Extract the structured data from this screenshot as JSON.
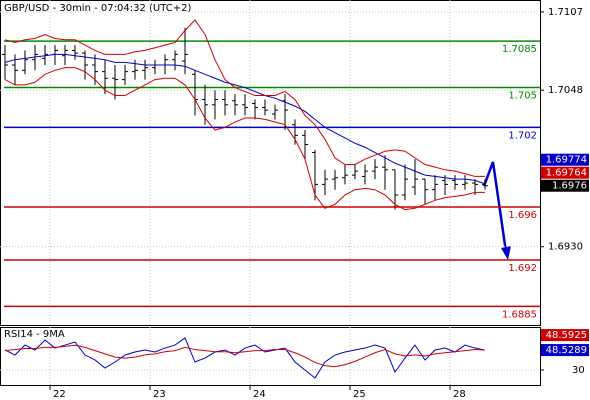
{
  "chart_data": [
    {
      "type": "ohlc",
      "title": "GBP/USD - 30min - 07:04:32 (UTC+2)",
      "color": "#000000",
      "categories": [
        null,
        null,
        null,
        null,
        null,
        "22",
        null,
        null,
        null,
        null,
        null,
        null,
        null,
        null,
        null,
        "23",
        null,
        null,
        null,
        null,
        null,
        null,
        null,
        null,
        null,
        "24",
        null,
        null,
        null,
        null,
        null,
        null,
        null,
        null,
        null,
        "25",
        null,
        null,
        null,
        null,
        null,
        null,
        null,
        null,
        null,
        "28",
        null,
        null,
        null
      ],
      "open": [
        1.7075,
        1.7067,
        1.7063,
        1.7071,
        1.7072,
        1.7075,
        1.7074,
        1.7078,
        1.7076,
        1.7067,
        1.7062,
        1.7057,
        1.7056,
        1.7062,
        1.7063,
        1.7065,
        1.7067,
        1.7071,
        1.707,
        1.706,
        1.7041,
        1.7037,
        1.7041,
        1.704,
        1.7037,
        1.7038,
        1.7035,
        1.703,
        1.704,
        1.7022,
        1.7014,
        1.7001,
        1.6977,
        1.6981,
        1.6982,
        1.6984,
        1.6983,
        1.6987,
        1.699,
        1.6988,
        1.6969,
        1.6975,
        1.6981,
        1.6973,
        1.698,
        1.698,
        1.6977,
        1.6978,
        1.6977
      ],
      "high": [
        1.7082,
        1.7075,
        1.7078,
        1.7082,
        1.7082,
        1.7082,
        1.7082,
        1.7082,
        1.7078,
        1.7075,
        1.7071,
        1.7067,
        1.7067,
        1.7071,
        1.7071,
        1.7071,
        1.7075,
        1.7078,
        1.7095,
        1.7063,
        1.7052,
        1.7048,
        1.7048,
        1.7045,
        1.7045,
        1.7041,
        1.7041,
        1.7037,
        1.7045,
        1.7026,
        1.7018,
        1.7003,
        1.6988,
        1.6988,
        1.6992,
        1.6992,
        1.6992,
        1.6996,
        1.6999,
        1.6988,
        1.6992,
        1.6996,
        1.6981,
        1.6984,
        1.6984,
        1.6984,
        1.6984,
        1.6981,
        1.6981
      ],
      "low": [
        1.7056,
        1.7052,
        1.706,
        1.7063,
        1.7067,
        1.7067,
        1.7067,
        1.7071,
        1.7056,
        1.7052,
        1.7045,
        1.7041,
        1.7052,
        1.7056,
        1.7056,
        1.706,
        1.706,
        1.7063,
        1.706,
        1.7029,
        1.7022,
        1.7026,
        1.7029,
        1.7029,
        1.7029,
        1.7026,
        1.7029,
        1.7026,
        1.7018,
        1.7007,
        1.6996,
        1.6965,
        1.6969,
        1.6973,
        1.6977,
        1.6981,
        1.6977,
        1.6981,
        1.6973,
        1.6958,
        1.6965,
        1.6969,
        1.6962,
        1.6965,
        1.6969,
        1.6973,
        1.6973,
        1.6969,
        1.6973
      ],
      "close": [
        1.7067,
        1.7063,
        1.7071,
        1.7075,
        1.7075,
        1.7078,
        1.7078,
        1.7076,
        1.7067,
        1.7062,
        1.7057,
        1.7056,
        1.7062,
        1.7063,
        1.7065,
        1.7067,
        1.7071,
        1.7075,
        1.7075,
        1.7041,
        1.7037,
        1.7041,
        1.7037,
        1.7037,
        1.7035,
        1.7035,
        1.7033,
        1.7033,
        1.7033,
        1.7014,
        1.7007,
        1.6977,
        1.6981,
        1.6982,
        1.6984,
        1.6987,
        1.6987,
        1.699,
        1.6988,
        1.6969,
        1.6981,
        1.6981,
        1.6973,
        1.6977,
        1.6977,
        1.6977,
        1.6978,
        1.6977,
        1.6976
      ],
      "lines": [
        {
          "color": "#0000c8",
          "values": [
            1.7069,
            1.7071,
            1.7072,
            1.7073,
            1.7074,
            1.7075,
            1.7075,
            1.7074,
            1.7073,
            1.7072,
            1.7071,
            1.7069,
            1.7069,
            1.7068,
            1.7067,
            1.7067,
            1.7067,
            1.7067,
            1.7066,
            1.7063,
            1.706,
            1.7057,
            1.7054,
            1.7052,
            1.705,
            1.7047,
            1.7044,
            1.7042,
            1.7039,
            1.7036,
            1.7032,
            1.7026,
            1.702,
            1.7016,
            1.7012,
            1.7008,
            1.7005,
            1.7001,
            1.6997,
            1.6993,
            1.699,
            1.6987,
            1.6984,
            1.6983,
            1.6982,
            1.6981,
            1.6981,
            1.698,
            1.69774
          ]
        },
        {
          "color": "#d00000",
          "values": [
            1.7086,
            1.7084,
            1.7086,
            1.7087,
            1.709,
            1.7087,
            1.7086,
            1.7086,
            1.7082,
            1.7078,
            1.7075,
            1.7075,
            1.7075,
            1.7077,
            1.7078,
            1.708,
            1.7082,
            1.7084,
            1.7093,
            1.7101,
            1.709,
            1.7071,
            1.7056,
            1.705,
            1.7047,
            1.7044,
            1.7044,
            1.7044,
            1.7047,
            1.7041,
            1.7029,
            1.7022,
            1.7011,
            1.6997,
            1.6992,
            1.6992,
            1.6996,
            1.6999,
            1.7002,
            1.7003,
            1.7002,
            1.6997,
            1.6992,
            1.699,
            1.6988,
            1.6987,
            1.6985,
            1.6983,
            1.6983
          ]
        },
        {
          "color": "#d00000",
          "values": [
            1.7056,
            1.7052,
            1.7052,
            1.7054,
            1.706,
            1.7063,
            1.7065,
            1.7065,
            1.7062,
            1.7056,
            1.7048,
            1.7044,
            1.7044,
            1.7048,
            1.7052,
            1.7056,
            1.7057,
            1.7057,
            1.7052,
            1.7041,
            1.7027,
            1.7018,
            1.702,
            1.7024,
            1.7027,
            1.7027,
            1.7026,
            1.7024,
            1.7022,
            1.7011,
            1.6996,
            1.6969,
            1.6959,
            1.6962,
            1.6969,
            1.6973,
            1.6974,
            1.6973,
            1.6969,
            1.6962,
            1.6958,
            1.6959,
            1.6962,
            1.6965,
            1.6967,
            1.6968,
            1.6969,
            1.6971,
            1.6971
          ]
        }
      ],
      "levels": {
        "values": [
          1.7085,
          1.705,
          1.702,
          1.696,
          1.692,
          1.6885
        ],
        "colors": [
          "#008c00",
          "#008c00",
          "#0000c8",
          "#d00000",
          "#d00000",
          "#d00000"
        ]
      },
      "price_tags": [
        {
          "value": 1.69774,
          "color": "#0000c8"
        },
        {
          "value": 1.69764,
          "color": "#d00000"
        },
        {
          "value": 1.6976,
          "color": "#000000"
        }
      ],
      "ylim": [
        1.6871,
        1.7116
      ],
      "yticks": [
        1.7107,
        1.7048,
        {
          "value": 1.693,
          "label": "1.6930"
        }
      ],
      "grid": true
    },
    {
      "type": "line",
      "title": "RSI14 - 9MA",
      "series": [
        {
          "color": "#0000c8",
          "values": [
            48.6,
            43.9,
            53.2,
            48.6,
            57.9,
            50.4,
            53.2,
            56.0,
            43.9,
            39.3,
            31.8,
            37.4,
            43.9,
            46.7,
            48.6,
            46.7,
            50.4,
            53.2,
            59.8,
            37.4,
            41.1,
            46.7,
            48.6,
            43.9,
            50.4,
            53.2,
            46.7,
            48.6,
            50.4,
            37.4,
            30.0,
            22.5,
            37.4,
            43.9,
            46.7,
            48.6,
            50.4,
            53.2,
            50.4,
            28.1,
            41.1,
            53.2,
            39.3,
            48.6,
            50.4,
            46.7,
            53.2,
            50.4,
            48.5289
          ]
        },
        {
          "color": "#d00000",
          "values": [
            48,
            49,
            50,
            50,
            51,
            51,
            52,
            53,
            51,
            48,
            45,
            42,
            41,
            42,
            44,
            45,
            47,
            48,
            51,
            49,
            48,
            47,
            47,
            46,
            47,
            48,
            48,
            49,
            49,
            46,
            42,
            37,
            34,
            33,
            35,
            38,
            42,
            46,
            49,
            45,
            43,
            44,
            43,
            45,
            46,
            47,
            48,
            49,
            48.5925
          ]
        }
      ],
      "price_tags": [
        {
          "value": 48.5925,
          "color": "#d00000"
        },
        {
          "value": 48.5289,
          "color": "#0000c8"
        }
      ],
      "ylim": [
        16,
        70
      ],
      "yticks": [
        30
      ],
      "grid": true
    }
  ]
}
